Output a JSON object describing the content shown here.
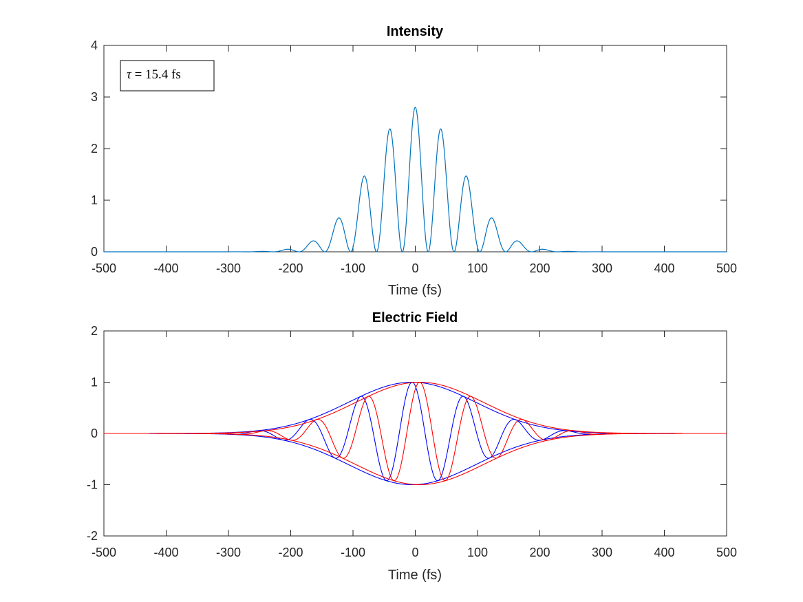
{
  "chart_data": [
    {
      "type": "line",
      "title": "Intensity",
      "xlabel": "Time (fs)",
      "ylabel": "",
      "xlim": [
        -500,
        500
      ],
      "ylim": [
        0,
        4
      ],
      "xticks": [
        "-500",
        "-400",
        "-300",
        "-200",
        "-100",
        "0",
        "100",
        "200",
        "300",
        "400",
        "500"
      ],
      "yticks": [
        "0",
        "1",
        "2",
        "3",
        "4"
      ],
      "annotation": {
        "symbol": "τ",
        "text": " = 15.4 fs"
      },
      "model": {
        "peak": 2.8,
        "envelope_sigma_fs": 72.5,
        "period_fs": 41.5
      },
      "series": [
        {
          "color": "#0072BD",
          "x": [
            -250,
            -210,
            -168,
            -125,
            -84,
            -42,
            0,
            42,
            84,
            125,
            168,
            210,
            250
          ],
          "y": [
            0.005,
            0.04,
            0.17,
            0.57,
            1.38,
            2.35,
            2.8,
            2.35,
            1.38,
            0.57,
            0.17,
            0.04,
            0.005
          ]
        }
      ]
    },
    {
      "type": "line",
      "title": "Electric Field",
      "xlabel": "Time (fs)",
      "ylabel": "",
      "xlim": [
        -500,
        500
      ],
      "ylim": [
        -2,
        2
      ],
      "xticks": [
        "-500",
        "-400",
        "-300",
        "-200",
        "-100",
        "0",
        "100",
        "200",
        "300",
        "400",
        "500"
      ],
      "yticks": [
        "-2",
        "-1",
        "0",
        "1",
        "2"
      ],
      "model": {
        "envelope_sigma_fs": 102.5,
        "period_fs": 83
      },
      "series": [
        {
          "color": "#0000FF",
          "kind": "field",
          "center_fs": -5
        },
        {
          "color": "#0000FF",
          "kind": "envelope-upper",
          "center_fs": -5
        },
        {
          "color": "#0000FF",
          "kind": "envelope-lower",
          "center_fs": -5
        },
        {
          "color": "#FF0000",
          "kind": "field",
          "center_fs": 7
        },
        {
          "color": "#FF0000",
          "kind": "envelope-upper",
          "center_fs": 7
        },
        {
          "color": "#FF0000",
          "kind": "envelope-lower",
          "center_fs": 7
        }
      ]
    }
  ]
}
